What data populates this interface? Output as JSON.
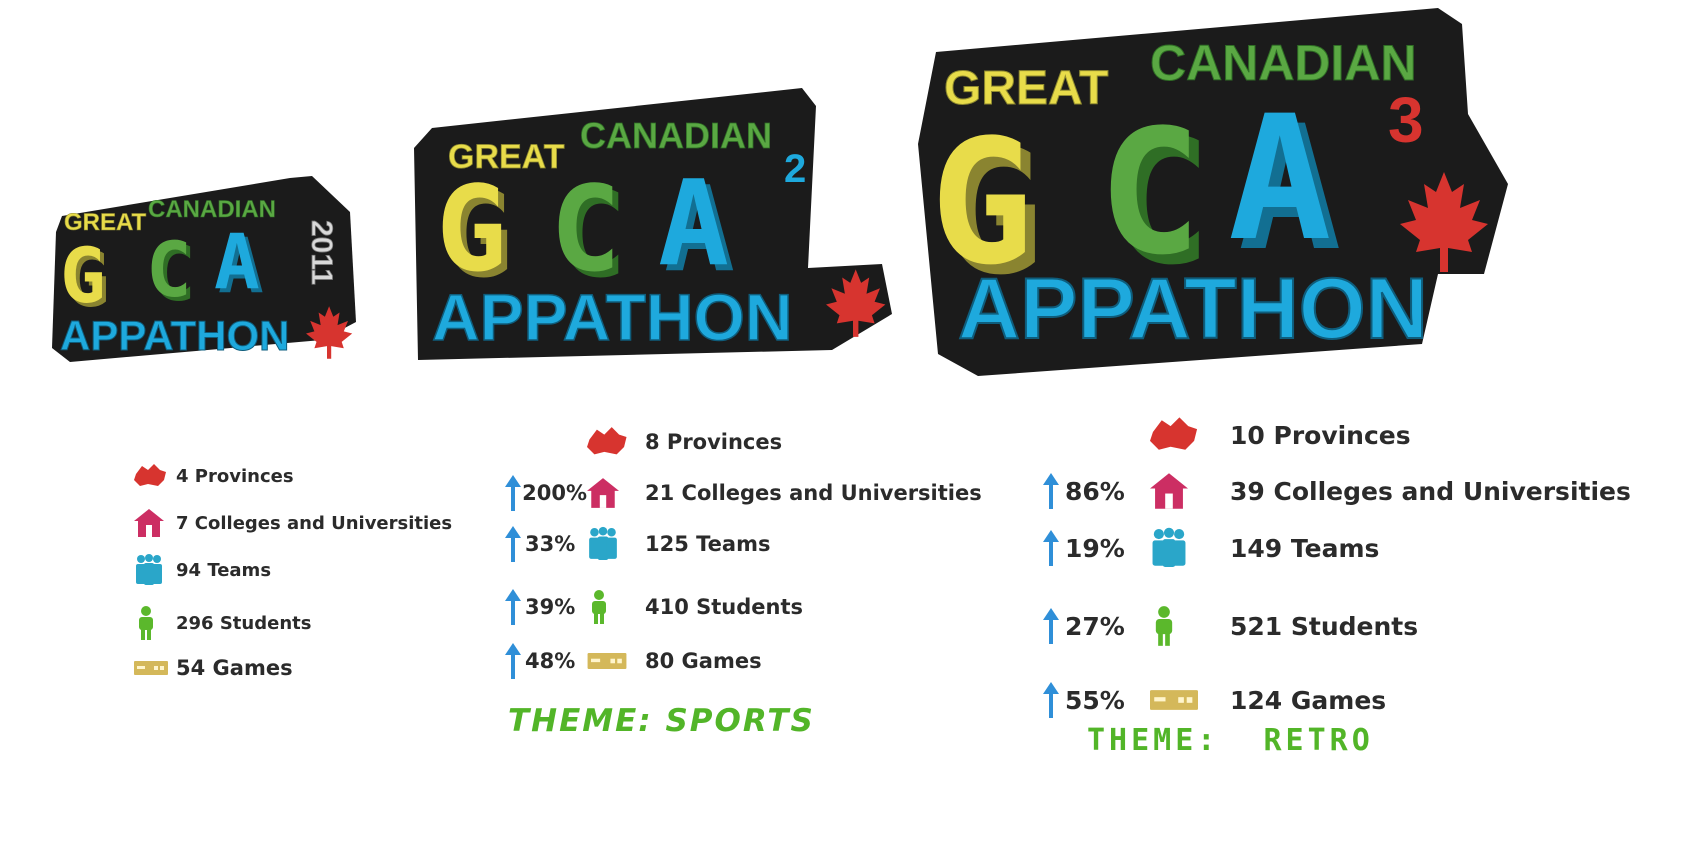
{
  "colors": {
    "yellow": "#e8dc4a",
    "green": "#5aa843",
    "blue": "#1ea9dd",
    "red": "#d7342f",
    "outline": "#1b1b1b",
    "arrow": "#2f8fd8",
    "theme_green": "#52b528",
    "house": "#cc2e63",
    "teams": "#2aa6c9",
    "student": "#5bb82c",
    "games": "#d4b85a"
  },
  "icons": [
    "canada-map-icon",
    "house-icon",
    "teams-icon",
    "student-icon",
    "game-controller-icon",
    "up-arrow-icon",
    "maple-leaf-icon"
  ],
  "editions": [
    {
      "logo": {
        "line1a": "GREAT",
        "line1b": "CANADIAN",
        "big": "GCA",
        "sup": "",
        "year": "2011",
        "line3": "APPATHON"
      },
      "stats": [
        {
          "label": "4 Provinces",
          "change": ""
        },
        {
          "label": "7 Colleges and Universities",
          "change": ""
        },
        {
          "label": "94 Teams",
          "change": ""
        },
        {
          "label": "296 Students",
          "change": ""
        },
        {
          "label": "54 Games",
          "change": ""
        }
      ],
      "theme": ""
    },
    {
      "logo": {
        "line1a": "GREAT",
        "line1b": "CANADIAN",
        "big": "GCA",
        "sup": "2",
        "year": "",
        "line3": "APPATHON"
      },
      "stats": [
        {
          "label": "8 Provinces",
          "change": ""
        },
        {
          "label": "21 Colleges and Universities",
          "change": "200%"
        },
        {
          "label": "125 Teams",
          "change": "33%"
        },
        {
          "label": "410 Students",
          "change": "39%"
        },
        {
          "label": "80 Games",
          "change": "48%"
        }
      ],
      "theme": "THEME: SPORTS"
    },
    {
      "logo": {
        "line1a": "GREAT",
        "line1b": "CANADIAN",
        "big": "GCA",
        "sup": "3",
        "year": "",
        "line3": "APPATHON"
      },
      "stats": [
        {
          "label": "10 Provinces",
          "change": ""
        },
        {
          "label": "39 Colleges and Universities",
          "change": "86%"
        },
        {
          "label": "149 Teams",
          "change": "19%"
        },
        {
          "label": "521 Students",
          "change": "27%"
        },
        {
          "label": "124 Games",
          "change": "55%"
        }
      ],
      "theme": "THEME:  RETRO"
    }
  ]
}
